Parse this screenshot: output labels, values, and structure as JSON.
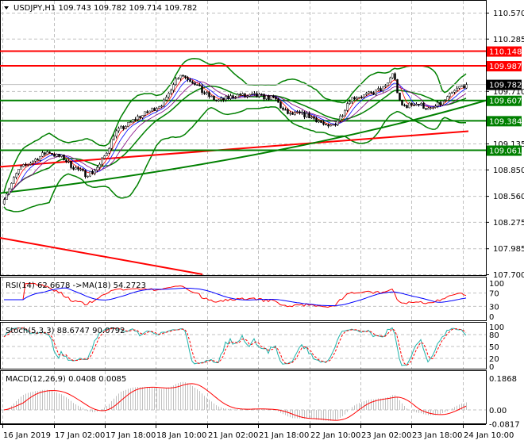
{
  "chart_data": {
    "type": "candlestick",
    "symbol_header": {
      "symbol": "USDJPY,H1",
      "open": "109.743",
      "high": "109.782",
      "low": "109.714",
      "close": "109.782"
    },
    "price_axis_ticks": [
      "110.570",
      "110.285",
      "109.710",
      "109.135",
      "108.850",
      "108.560",
      "108.275",
      "107.985",
      "107.700"
    ],
    "ylim": [
      107.7,
      110.57
    ],
    "x_tick_labels": [
      "16 Jan 2019",
      "17 Jan 02:00",
      "17 Jan 18:00",
      "18 Jan 10:00",
      "21 Jan 02:00",
      "21 Jan 18:00",
      "22 Jan 10:00",
      "23 Jan 02:00",
      "23 Jan 18:00",
      "24 Jan 10:00"
    ],
    "close_series": [
      108.55,
      108.7,
      108.85,
      108.9,
      108.95,
      109.0,
      109.05,
      109.0,
      108.98,
      108.9,
      108.85,
      108.8,
      108.82,
      108.9,
      109.05,
      109.25,
      109.3,
      109.35,
      109.42,
      109.45,
      109.5,
      109.55,
      109.6,
      109.8,
      109.9,
      109.85,
      109.8,
      109.7,
      109.65,
      109.6,
      109.62,
      109.65,
      109.67,
      109.65,
      109.66,
      109.65,
      109.64,
      109.62,
      109.5,
      109.45,
      109.46,
      109.45,
      109.42,
      109.38,
      109.3,
      109.35,
      109.45,
      109.62,
      109.65,
      109.66,
      109.68,
      109.72,
      109.75,
      109.92,
      109.55,
      109.55,
      109.58,
      109.55,
      109.5,
      109.55,
      109.6,
      109.68,
      109.75,
      109.782
    ],
    "levels": [
      {
        "price": 110.148,
        "label": "110.148",
        "color": "#ff0000"
      },
      {
        "price": 109.987,
        "label": "109.987",
        "color": "#ff0000"
      },
      {
        "price": 109.607,
        "label": "109.607",
        "color": "#008000"
      },
      {
        "price": 109.384,
        "label": "109.384",
        "color": "#008000"
      },
      {
        "price": 109.061,
        "label": "109.061",
        "color": "#008000"
      }
    ],
    "current_price": {
      "price": 109.782,
      "label": "109.782",
      "color": "#000000"
    },
    "trend_lines": [
      {
        "color": "#ff0000",
        "from_price": 108.88,
        "to_price": 109.27
      },
      {
        "color": "#008000",
        "from_price": 108.59,
        "to_price": 109.607
      },
      {
        "color": "#ff0000",
        "from_price": 108.1,
        "to_price": 107.7
      }
    ],
    "indicators": {
      "rsi": {
        "label": "RSI(14) 62.6678  ->MA(18) 54.2723",
        "ticks": [
          "100",
          "70",
          "30",
          "0"
        ],
        "colors": {
          "rsi": "#ff0000",
          "ma": "#0000ff"
        }
      },
      "stoch": {
        "label": "Stoch(5,3,3) 88.6747 90.0792",
        "ticks": [
          "100",
          "80",
          "50",
          "20",
          "0"
        ],
        "colors": {
          "main": "#20b2aa",
          "signal": "#ff0000"
        }
      },
      "macd": {
        "label": "MACD(12,26,9) 0.0408 0.0085",
        "ticks": [
          "0.1868",
          "0.00",
          "-0.0817"
        ],
        "colors": {
          "hist": "#c0c0c0",
          "signal": "#ff0000"
        }
      }
    },
    "bollinger_color": "#008000",
    "grid": true
  }
}
